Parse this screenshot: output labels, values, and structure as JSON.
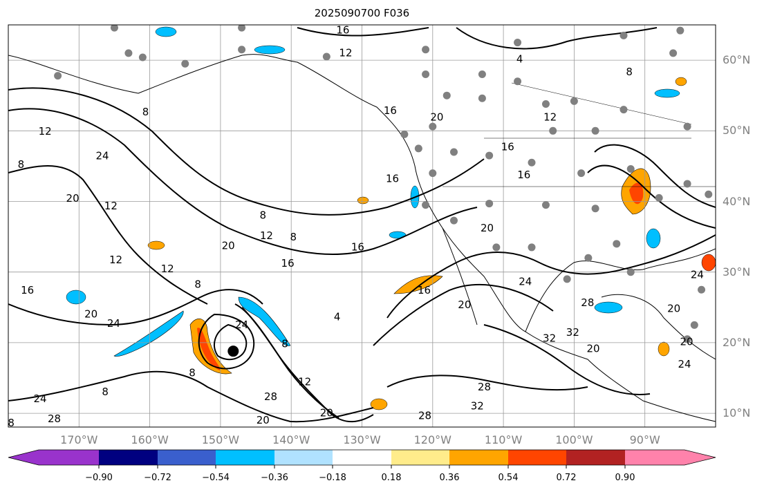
{
  "title": "2025090700 F036",
  "lat_labels": [
    {
      "lat": 60,
      "text": "60°N"
    },
    {
      "lat": 50,
      "text": "50°N"
    },
    {
      "lat": 40,
      "text": "40°N"
    },
    {
      "lat": 30,
      "text": "30°N"
    },
    {
      "lat": 20,
      "text": "20°N"
    },
    {
      "lat": 10,
      "text": "10°N"
    }
  ],
  "lon_labels": [
    {
      "lon": -170,
      "text": "170°W"
    },
    {
      "lon": -160,
      "text": "160°W"
    },
    {
      "lon": -150,
      "text": "150°W"
    },
    {
      "lon": -140,
      "text": "140°W"
    },
    {
      "lon": -130,
      "text": "130°W"
    },
    {
      "lon": -120,
      "text": "120°W"
    },
    {
      "lon": -110,
      "text": "110°W"
    },
    {
      "lon": -100,
      "text": "100°W"
    },
    {
      "lon": -90,
      "text": "90°W"
    }
  ],
  "colorbar": {
    "colors": [
      "#9933cc",
      "#000080",
      "#3a5fcd",
      "#00bfff",
      "#b0e2ff",
      "#ffffff",
      "#ffec8b",
      "#ffa500",
      "#ff4500",
      "#b22222",
      "#ff82ab"
    ],
    "ticks": [
      "−0.90",
      "−0.72",
      "−0.54",
      "−0.36",
      "−0.18",
      "0.18",
      "0.36",
      "0.54",
      "0.72",
      "0.90"
    ]
  },
  "contour_labels": [
    {
      "t": "16",
      "lon": -132.7,
      "lat": 64.2
    },
    {
      "t": "12",
      "lon": -132.3,
      "lat": 61
    },
    {
      "t": "4",
      "lon": -107.7,
      "lat": 60.1
    },
    {
      "t": "8",
      "lon": -92.2,
      "lat": 58.3
    },
    {
      "t": "12",
      "lon": -103.4,
      "lat": 51.9
    },
    {
      "t": "20",
      "lon": -119.4,
      "lat": 51.9
    },
    {
      "t": "16",
      "lon": -126,
      "lat": 52.8
    },
    {
      "t": "8",
      "lon": -160.6,
      "lat": 52.6
    },
    {
      "t": "12",
      "lon": -174.8,
      "lat": 49.9
    },
    {
      "t": "24",
      "lon": -166.7,
      "lat": 46.4
    },
    {
      "t": "8",
      "lon": -178.2,
      "lat": 45.2
    },
    {
      "t": "20",
      "lon": -170.9,
      "lat": 40.4
    },
    {
      "t": "12",
      "lon": -165.5,
      "lat": 39.3
    },
    {
      "t": "8",
      "lon": -144,
      "lat": 38
    },
    {
      "t": "16",
      "lon": -125.7,
      "lat": 43.2
    },
    {
      "t": "8",
      "lon": -139.7,
      "lat": 34.9
    },
    {
      "t": "12",
      "lon": -143.5,
      "lat": 35.1
    },
    {
      "t": "20",
      "lon": -148.9,
      "lat": 33.7
    },
    {
      "t": "16",
      "lon": -140.5,
      "lat": 31.2
    },
    {
      "t": "16",
      "lon": -130.6,
      "lat": 33.5
    },
    {
      "t": "12",
      "lon": -164.8,
      "lat": 31.7
    },
    {
      "t": "12",
      "lon": -157.5,
      "lat": 30.4
    },
    {
      "t": "8",
      "lon": -153.2,
      "lat": 28.2
    },
    {
      "t": "16",
      "lon": -177.3,
      "lat": 27.4
    },
    {
      "t": "20",
      "lon": -168.3,
      "lat": 24
    },
    {
      "t": "24",
      "lon": -165.1,
      "lat": 22.7
    },
    {
      "t": "24",
      "lon": -147,
      "lat": 22.5
    },
    {
      "t": "16",
      "lon": -121.2,
      "lat": 27.4
    },
    {
      "t": "4",
      "lon": -133.5,
      "lat": 23.6
    },
    {
      "t": "20",
      "lon": -115.5,
      "lat": 25.3
    },
    {
      "t": "24",
      "lon": -106.9,
      "lat": 28.6
    },
    {
      "t": "28",
      "lon": -98.1,
      "lat": 25.6
    },
    {
      "t": "20",
      "lon": -85.9,
      "lat": 24.8
    },
    {
      "t": "24",
      "lon": -82.6,
      "lat": 29.6
    },
    {
      "t": "20",
      "lon": -84.1,
      "lat": 20.1
    },
    {
      "t": "24",
      "lon": -84.4,
      "lat": 16.9
    },
    {
      "t": "20",
      "lon": -97.3,
      "lat": 19.1
    },
    {
      "t": "32",
      "lon": -103.5,
      "lat": 20.6
    },
    {
      "t": "32",
      "lon": -100.2,
      "lat": 21.4
    },
    {
      "t": "8",
      "lon": -140.9,
      "lat": 19.8
    },
    {
      "t": "12",
      "lon": -138.1,
      "lat": 14.4
    },
    {
      "t": "28",
      "lon": -142.9,
      "lat": 12.3
    },
    {
      "t": "20",
      "lon": -144,
      "lat": 9
    },
    {
      "t": "20",
      "lon": -135,
      "lat": 10
    },
    {
      "t": "28",
      "lon": -121.1,
      "lat": 9.6
    },
    {
      "t": "32",
      "lon": -113.7,
      "lat": 11
    },
    {
      "t": "28",
      "lon": -112.7,
      "lat": 13.7
    },
    {
      "t": "8",
      "lon": -154,
      "lat": 15.7
    },
    {
      "t": "8",
      "lon": -166.3,
      "lat": 13
    },
    {
      "t": "24",
      "lon": -175.5,
      "lat": 12
    },
    {
      "t": "28",
      "lon": -173.5,
      "lat": 9.2
    },
    {
      "t": "8",
      "lon": -179.6,
      "lat": 8.6
    },
    {
      "t": "20",
      "lon": -112.3,
      "lat": 36.2
    },
    {
      "t": "16",
      "lon": -107.1,
      "lat": 43.7
    },
    {
      "t": "16",
      "lon": -109.4,
      "lat": 47.7
    }
  ],
  "stations": [
    [
      -165,
      64.6
    ],
    [
      -147,
      64.6
    ],
    [
      -163,
      61
    ],
    [
      -155,
      59.5
    ],
    [
      -173,
      57.8
    ],
    [
      -161,
      60.4
    ],
    [
      -147,
      61.5
    ],
    [
      -135,
      60.5
    ],
    [
      -121,
      61.5
    ],
    [
      -108,
      62.5
    ],
    [
      -93,
      63.5
    ],
    [
      -85,
      64.2
    ],
    [
      -86,
      61
    ],
    [
      -121,
      58
    ],
    [
      -113,
      58
    ],
    [
      -108,
      57
    ],
    [
      -118,
      55
    ],
    [
      -113,
      54.6
    ],
    [
      -104,
      53.8
    ],
    [
      -100,
      54.2
    ],
    [
      -93,
      53
    ],
    [
      -84,
      50.6
    ],
    [
      -97,
      50
    ],
    [
      -103,
      50
    ],
    [
      -120,
      50.6
    ],
    [
      -124,
      49.5
    ],
    [
      -122,
      47.5
    ],
    [
      -117,
      47
    ],
    [
      -112,
      46.5
    ],
    [
      -106,
      45.5
    ],
    [
      -99,
      44
    ],
    [
      -92,
      44.6
    ],
    [
      -120,
      44
    ],
    [
      -121,
      39.5
    ],
    [
      -117,
      37.3
    ],
    [
      -112,
      39.7
    ],
    [
      -104,
      39.5
    ],
    [
      -97,
      39
    ],
    [
      -88,
      40.5
    ],
    [
      -84,
      42.5
    ],
    [
      -81,
      41
    ],
    [
      -94,
      34
    ],
    [
      -98,
      32
    ],
    [
      -106,
      33.5
    ],
    [
      -111,
      33.5
    ],
    [
      -101,
      29
    ],
    [
      -92,
      30
    ],
    [
      -82,
      27.5
    ],
    [
      -83,
      22.5
    ],
    [
      -84,
      20.5
    ]
  ],
  "cyclone_center": {
    "lon": -148.2,
    "lat": 18.8
  }
}
